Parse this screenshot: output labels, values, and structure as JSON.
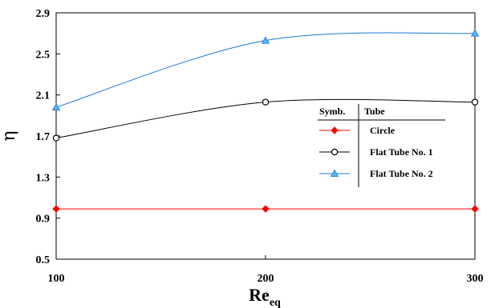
{
  "chart_data": {
    "type": "line",
    "x": [
      100,
      200,
      300
    ],
    "x_ticks": [
      "100",
      "200",
      "300"
    ],
    "y_ticks": [
      "0.5",
      "0.9",
      "1.3",
      "1.7",
      "2.1",
      "2.5",
      "2.9"
    ],
    "xlim": [
      100,
      300
    ],
    "ylim": [
      0.5,
      2.9
    ],
    "ylabel": "η",
    "xlabel": {
      "main": "Re",
      "sub": "eq"
    },
    "grid": false,
    "legend": {
      "placement": "center-right",
      "header_symbol": "Symb.",
      "header_label": "Tube"
    },
    "series": [
      {
        "name": "Circle",
        "values": [
          0.99,
          0.99,
          0.99
        ],
        "color": "#ff0000",
        "marker": "diamond"
      },
      {
        "name": "Flat Tube No. 1",
        "values": [
          1.68,
          2.03,
          2.03
        ],
        "color": "#000000",
        "marker": "circle-open"
      },
      {
        "name": "Flat Tube No. 2",
        "values": [
          1.98,
          2.63,
          2.7
        ],
        "color": "#1f77d4",
        "marker": "triangle"
      }
    ]
  }
}
